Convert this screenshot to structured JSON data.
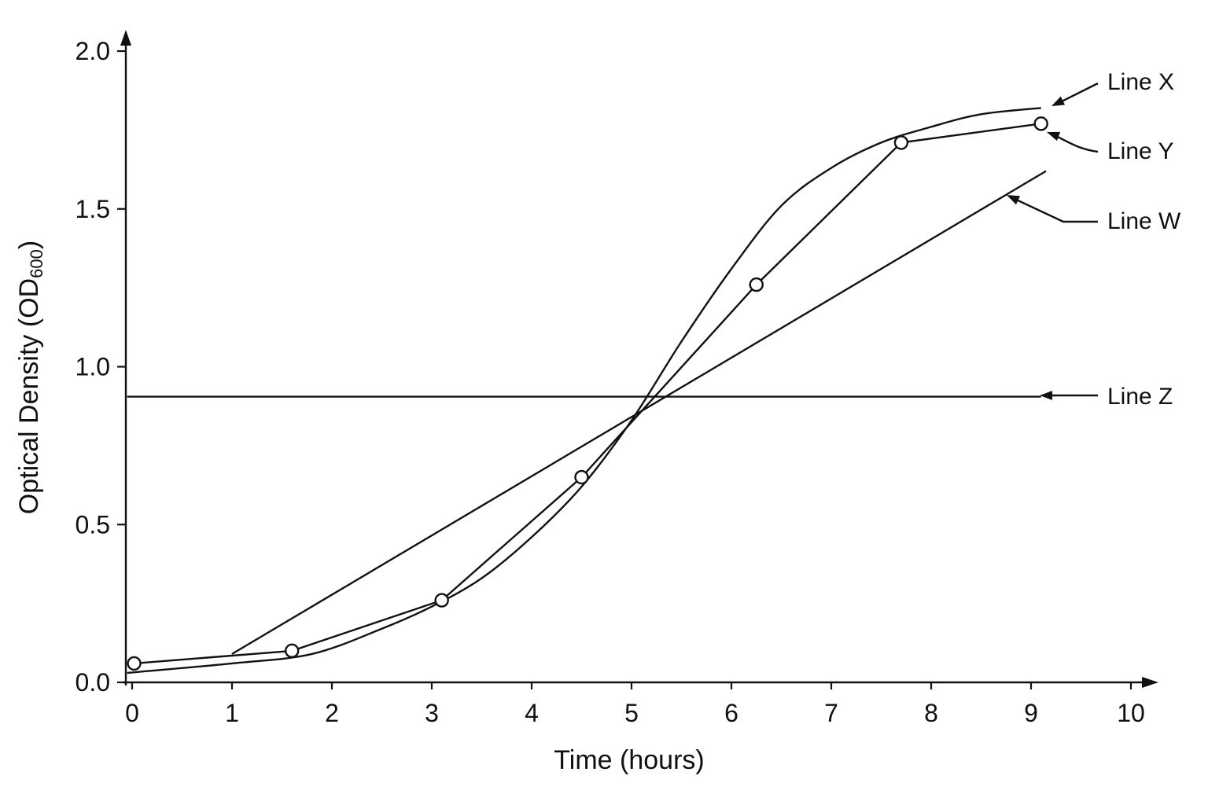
{
  "chart_data": {
    "type": "line",
    "xlabel": "Time (hours)",
    "ylabel": {
      "main": "Optical Density (OD",
      "sub": "600",
      "close": ")"
    },
    "xlim": [
      0,
      10
    ],
    "ylim": [
      0,
      2.0
    ],
    "x_ticks": [
      0,
      1,
      2,
      3,
      4,
      5,
      6,
      7,
      8,
      9,
      10
    ],
    "x_tick_labels": [
      "0",
      "1",
      "2",
      "3",
      "4",
      "5",
      "6",
      "7",
      "8",
      "9",
      "10"
    ],
    "y_ticks": [
      0,
      0.5,
      1.0,
      1.5,
      2.0
    ],
    "y_tick_labels": [
      "0.0",
      "0.5",
      "1.0",
      "1.5",
      "2.0"
    ],
    "grid": false,
    "series": [
      {
        "name": "Line X",
        "style": "smooth curve",
        "x": [
          -0.05,
          1,
          1.8,
          2.5,
          3,
          3.5,
          4,
          4.5,
          5,
          5.5,
          6,
          6.5,
          7,
          7.5,
          8,
          8.5,
          9.1
        ],
        "y": [
          0.03,
          0.06,
          0.09,
          0.17,
          0.24,
          0.33,
          0.46,
          0.62,
          0.83,
          1.08,
          1.31,
          1.51,
          1.63,
          1.71,
          1.76,
          1.8,
          1.82
        ]
      },
      {
        "name": "Line Y",
        "style": "connected points",
        "x": [
          0.02,
          1.6,
          3.1,
          4.5,
          6.25,
          7.7,
          9.1
        ],
        "y": [
          0.06,
          0.1,
          0.26,
          0.65,
          1.26,
          1.71,
          1.77
        ]
      },
      {
        "name": "Line W",
        "style": "straight line",
        "x": [
          1.0,
          9.15
        ],
        "y": [
          0.09,
          1.62
        ]
      },
      {
        "name": "Line Z",
        "style": "horizontal line",
        "x": [
          -0.05,
          9.1
        ],
        "y": [
          0.905,
          0.905
        ]
      }
    ],
    "annotations": [
      {
        "label": "Line X",
        "series": "Line X"
      },
      {
        "label": "Line Y",
        "series": "Line Y"
      },
      {
        "label": "Line W",
        "series": "Line W"
      },
      {
        "label": "Line Z",
        "series": "Line Z"
      }
    ],
    "colors": {
      "ink": "#111111",
      "background": "#ffffff",
      "marker_fill": "#ffffff"
    }
  }
}
